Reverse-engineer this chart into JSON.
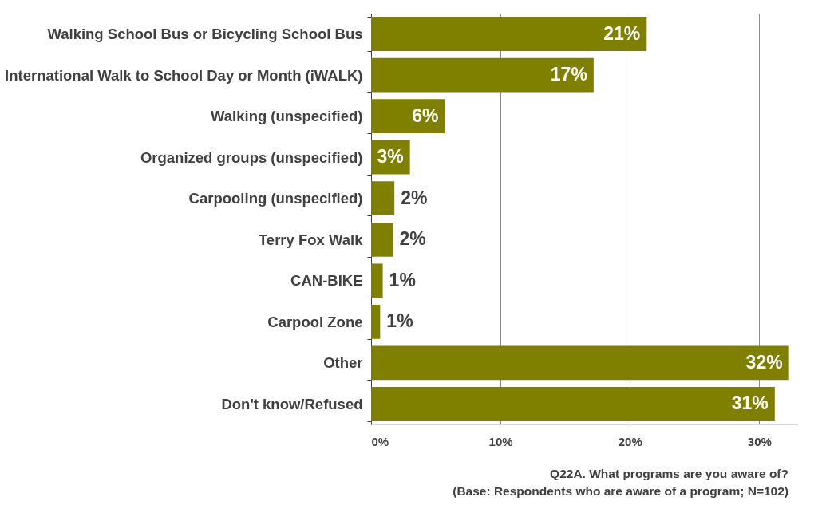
{
  "chart_data": {
    "type": "bar",
    "orientation": "horizontal",
    "categories": [
      "Walking School Bus or Bicycling School Bus",
      "International Walk to School Day or Month (iWALK)",
      "Walking (unspecified)",
      "Organized groups (unspecified)",
      "Carpooling (unspecified)",
      "Terry Fox Walk",
      "CAN-BIKE",
      "Carpool Zone",
      "Other",
      "Don't know/Refused"
    ],
    "values": [
      21.3,
      17.2,
      5.7,
      3.0,
      1.8,
      1.7,
      0.9,
      0.7,
      32.3,
      31.2
    ],
    "value_labels": [
      "21%",
      "17%",
      "6%",
      "3%",
      "2%",
      "2%",
      "1%",
      "1%",
      "32%",
      "31%"
    ],
    "color": "#7f7f00",
    "xlim": [
      0,
      33
    ],
    "xticks": [
      {
        "value": 0,
        "label": "0%"
      },
      {
        "value": 10,
        "label": "10%"
      },
      {
        "value": 20,
        "label": "20%"
      },
      {
        "value": 30,
        "label": "30%"
      }
    ],
    "grid": "x",
    "annotations": [
      "Q22A.  What programs are you aware of?",
      "(Base: Respondents who are aware of a program; N=102)"
    ]
  }
}
